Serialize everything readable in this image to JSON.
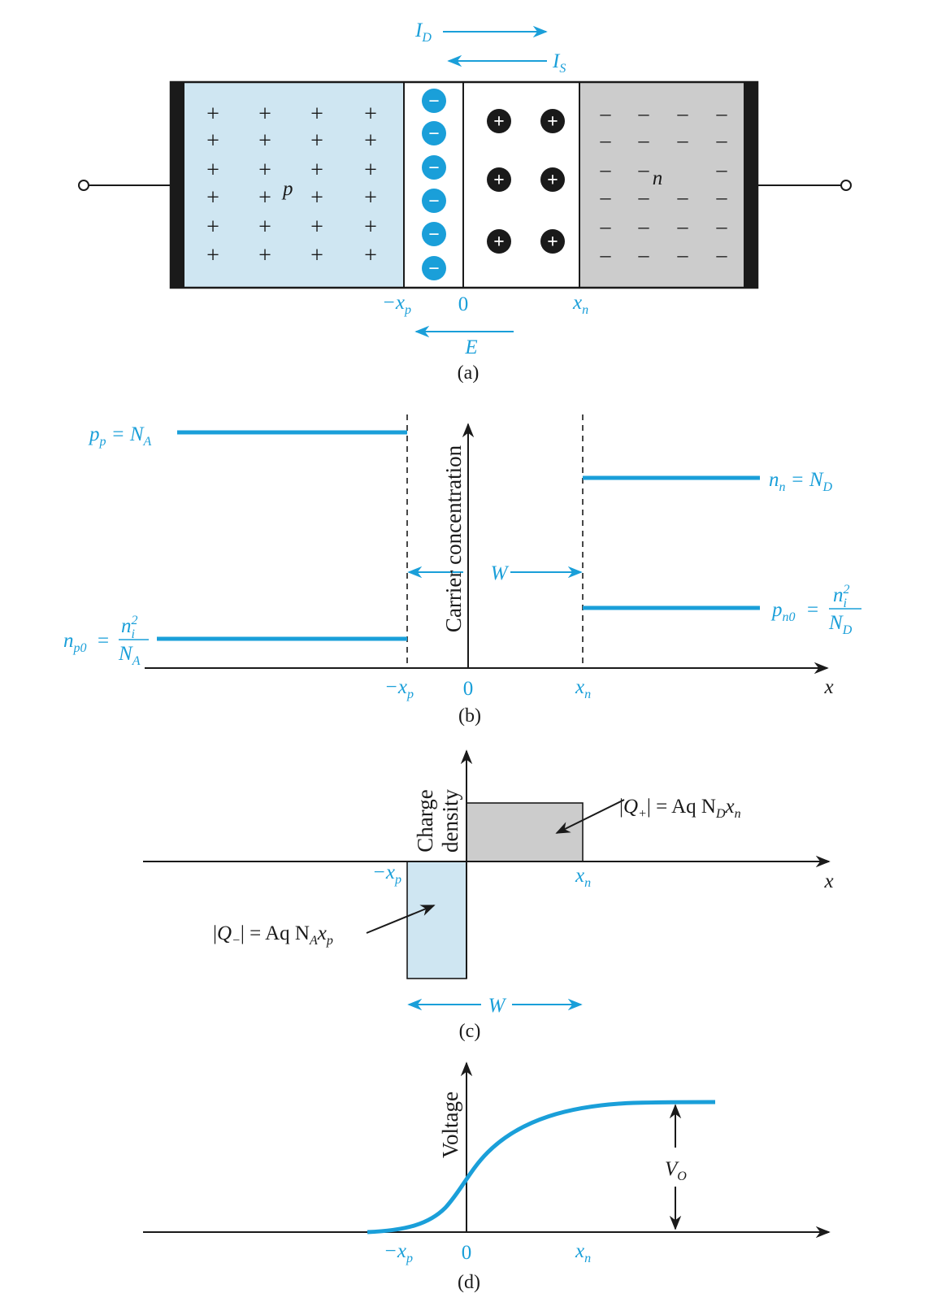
{
  "colors": {
    "accent": "#1a9fd9",
    "p_region": "#cfe6f2",
    "n_region": "#cccccc",
    "dark": "#1a1a1a"
  },
  "panel_a": {
    "current_diffusion": {
      "main": "I",
      "sub": "D"
    },
    "current_saturation": {
      "main": "I",
      "sub": "S"
    },
    "p_label": "p",
    "n_label": "n",
    "ion_negative": "−",
    "ion_positive": "+",
    "p_carrier": "+",
    "n_carrier": "–",
    "x_minus": {
      "main": "−x",
      "sub": "p"
    },
    "zero": "0",
    "x_n": {
      "main": "x",
      "sub": "n"
    },
    "field": "E",
    "caption": "(a)"
  },
  "panel_b": {
    "pp_left": {
      "main": "p",
      "sub": "p",
      "rest": " = N",
      "sub2": "A"
    },
    "nn_right": {
      "main": "n",
      "sub": "n",
      "rest": " = N",
      "sub2": "D"
    },
    "np0": {
      "main": "n",
      "sub": "p0",
      "eq": "="
    },
    "np0_frac_num": {
      "main": "n",
      "sup": "2",
      "sub": "i"
    },
    "np0_frac_den": {
      "main": "N",
      "sub": "A"
    },
    "pn0": {
      "main": "p",
      "sub": "n0",
      "eq": "="
    },
    "pn0_frac_num": {
      "main": "n",
      "sup": "2",
      "sub": "i"
    },
    "pn0_frac_den": {
      "main": "N",
      "sub": "D"
    },
    "width": "W",
    "y_axis": "Carrier concentration",
    "x_axis": "x",
    "x_minus": {
      "main": "−x",
      "sub": "p"
    },
    "zero": "0",
    "x_n": {
      "main": "x",
      "sub": "n"
    },
    "caption": "(b)"
  },
  "panel_c": {
    "y_axis_line1": "Charge",
    "y_axis_line2": "density",
    "q_plus": {
      "pre": "|",
      "main": "Q",
      "sub": "+",
      "rest": "| = Aq N",
      "sub2": "D",
      "rest2": "x",
      "sub3": "n"
    },
    "q_minus": {
      "pre": "|",
      "main": "Q",
      "sub": "−",
      "rest": "| = Aq N",
      "sub2": "A",
      "rest2": "x",
      "sub3": "p"
    },
    "x_minus": {
      "main": "−x",
      "sub": "p"
    },
    "x_n": {
      "main": "x",
      "sub": "n"
    },
    "x_axis": "x",
    "width": "W",
    "caption": "(c)"
  },
  "panel_d": {
    "y_axis": "Voltage",
    "vo": {
      "main": "V",
      "sub": "O"
    },
    "x_minus": {
      "main": "−x",
      "sub": "p"
    },
    "zero": "0",
    "x_n": {
      "main": "x",
      "sub": "n"
    },
    "caption": "(d)"
  }
}
